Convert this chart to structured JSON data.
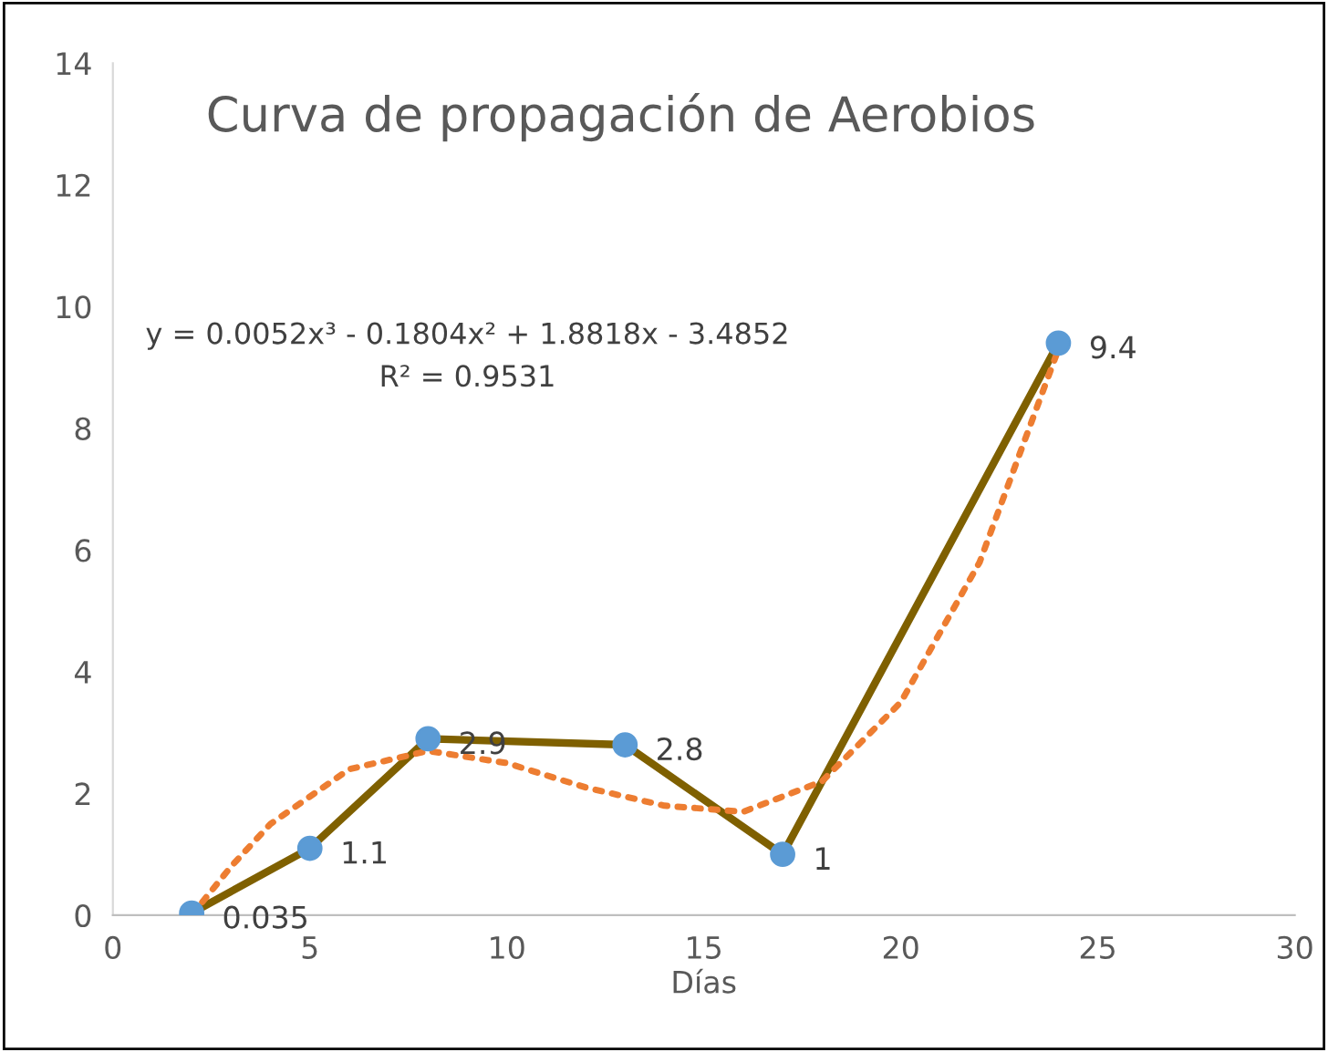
{
  "chart_data": {
    "type": "line",
    "title": "Curva de propagación de Aerobios",
    "xlabel": "Días",
    "xlim": [
      0,
      30
    ],
    "xticks": [
      0,
      5,
      10,
      15,
      20,
      25,
      30
    ],
    "ylim": [
      0,
      14
    ],
    "yticks": [
      0,
      2,
      4,
      6,
      8,
      10,
      12,
      14
    ],
    "grid": false,
    "legend": false,
    "series": [
      {
        "x": [
          2,
          5,
          8,
          13,
          17,
          24
        ],
        "values": [
          0.035,
          1.1,
          2.9,
          2.8,
          1,
          9.4
        ],
        "value_labels": [
          "0.035",
          "1.1",
          "2.9",
          "2.8",
          "1",
          "9.4"
        ],
        "color": "#7f6000",
        "colors": [
          "#5b9bd5",
          "#5b9bd5",
          "#5b9bd5",
          "#5b9bd5",
          "#5b9bd5",
          "#5b9bd5"
        ],
        "marker": "circle",
        "line_style": "solid"
      },
      {
        "x": [
          2,
          3,
          4,
          6,
          8,
          10,
          12,
          14,
          16,
          18,
          20,
          22,
          24
        ],
        "values": [
          0.0,
          0.8,
          1.5,
          2.4,
          2.7,
          2.5,
          2.1,
          1.8,
          1.7,
          2.2,
          3.5,
          5.8,
          9.3
        ],
        "color": "#ed7d31",
        "marker": "none",
        "line_style": "dotted"
      }
    ],
    "annotations": [
      "y = 0.0052x³ - 0.1804x² + 1.8818x - 3.4852",
      "R² = 0.9531"
    ]
  }
}
